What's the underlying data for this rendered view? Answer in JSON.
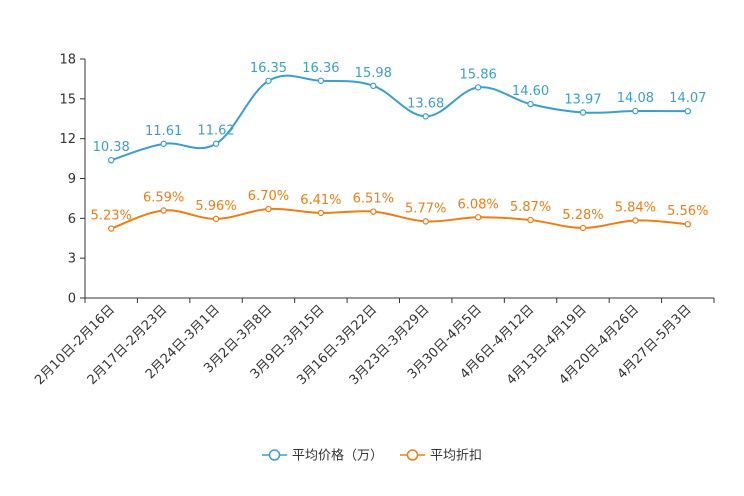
{
  "chart_data": {
    "type": "line",
    "title": "",
    "xlabel": "",
    "ylabel": "",
    "ylim": [
      0,
      18
    ],
    "yticks": [
      0,
      3,
      6,
      9,
      12,
      15,
      18
    ],
    "categories": [
      "2月10日-2月16日",
      "2月17日-2月23日",
      "2月24日-3月1日",
      "3月2日-3月8日",
      "3月9日-3月15日",
      "3月16日-3月22日",
      "3月23日-3月29日",
      "3月30日-4月5日",
      "4月6日-4月12日",
      "4月13日-4月19日",
      "4月20日-4月26日",
      "4月27日-5月3日"
    ],
    "series": [
      {
        "name": "平均价格（万）",
        "color": "#3a9fcf",
        "values": [
          10.38,
          11.61,
          11.62,
          16.35,
          16.36,
          15.98,
          13.68,
          15.86,
          14.6,
          13.97,
          14.08,
          14.07
        ],
        "labels": [
          "10.38",
          "11.61",
          "11.62",
          "16.35",
          "16.36",
          "15.98",
          "13.68",
          "15.86",
          "14.60",
          "13.97",
          "14.08",
          "14.07"
        ]
      },
      {
        "name": "平均折扣",
        "color": "#f07d14",
        "values": [
          5.23,
          6.59,
          5.96,
          6.7,
          6.41,
          6.51,
          5.77,
          6.08,
          5.87,
          5.28,
          5.84,
          5.56
        ],
        "labels": [
          "5.23%",
          "6.59%",
          "5.96%",
          "6.70%",
          "6.41%",
          "6.51%",
          "5.77%",
          "6.08%",
          "5.87%",
          "5.28%",
          "5.84%",
          "5.56%"
        ]
      }
    ],
    "legend_position": "bottom-center",
    "grid": false
  }
}
